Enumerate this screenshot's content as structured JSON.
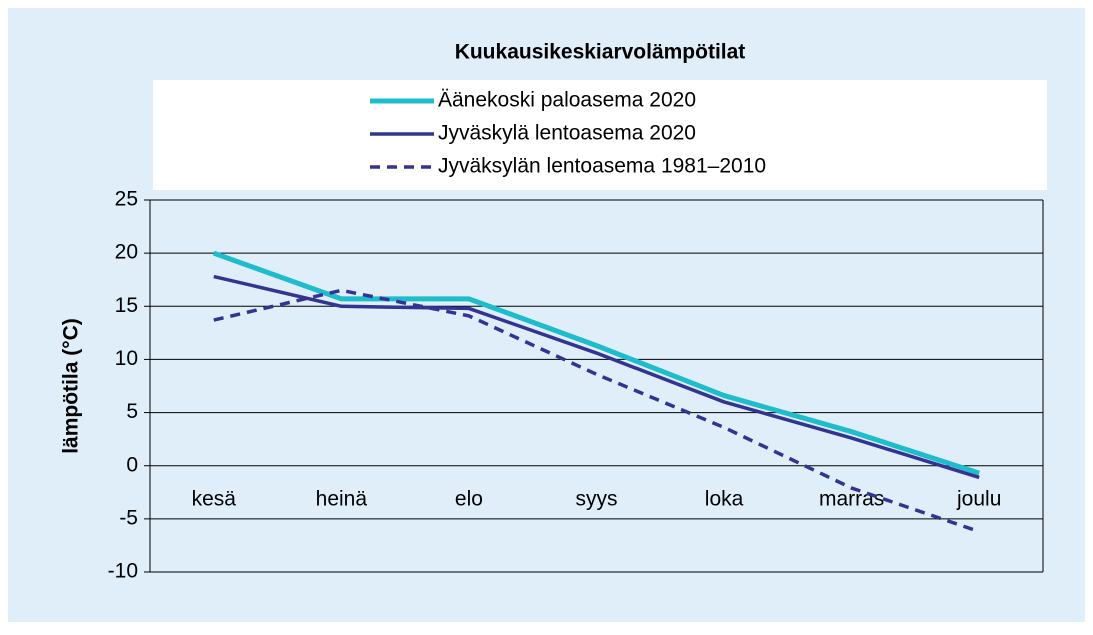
{
  "chart_data": {
    "type": "line",
    "title": "Kuukausikeskiarvolämpötilat",
    "ylabel": "lämpötila (°C)",
    "categories": [
      "kesä",
      "heinä",
      "elo",
      "syys",
      "loka",
      "marras",
      "joulu"
    ],
    "series": [
      {
        "name": "Äänekoski paloasema 2020",
        "color": "#1fbccc",
        "dash": false,
        "values": [
          20,
          15.7,
          15.7,
          11.3,
          6.6,
          3.2,
          -0.7
        ]
      },
      {
        "name": "Jyväskylä lentoasema 2020",
        "color": "#333391",
        "dash": false,
        "values": [
          17.8,
          15.0,
          14.8,
          10.6,
          6.0,
          2.6,
          -1.1
        ]
      },
      {
        "name": "Jyväksylän lentoasema 1981–2010",
        "color": "#333391",
        "dash": true,
        "values": [
          13.7,
          16.5,
          14.1,
          8.6,
          3.6,
          -2.1,
          -6.2
        ]
      }
    ],
    "ylim": [
      -10,
      25
    ],
    "yticks": [
      -10,
      -5,
      0,
      5,
      10,
      15,
      20,
      25
    ],
    "grid": true
  }
}
